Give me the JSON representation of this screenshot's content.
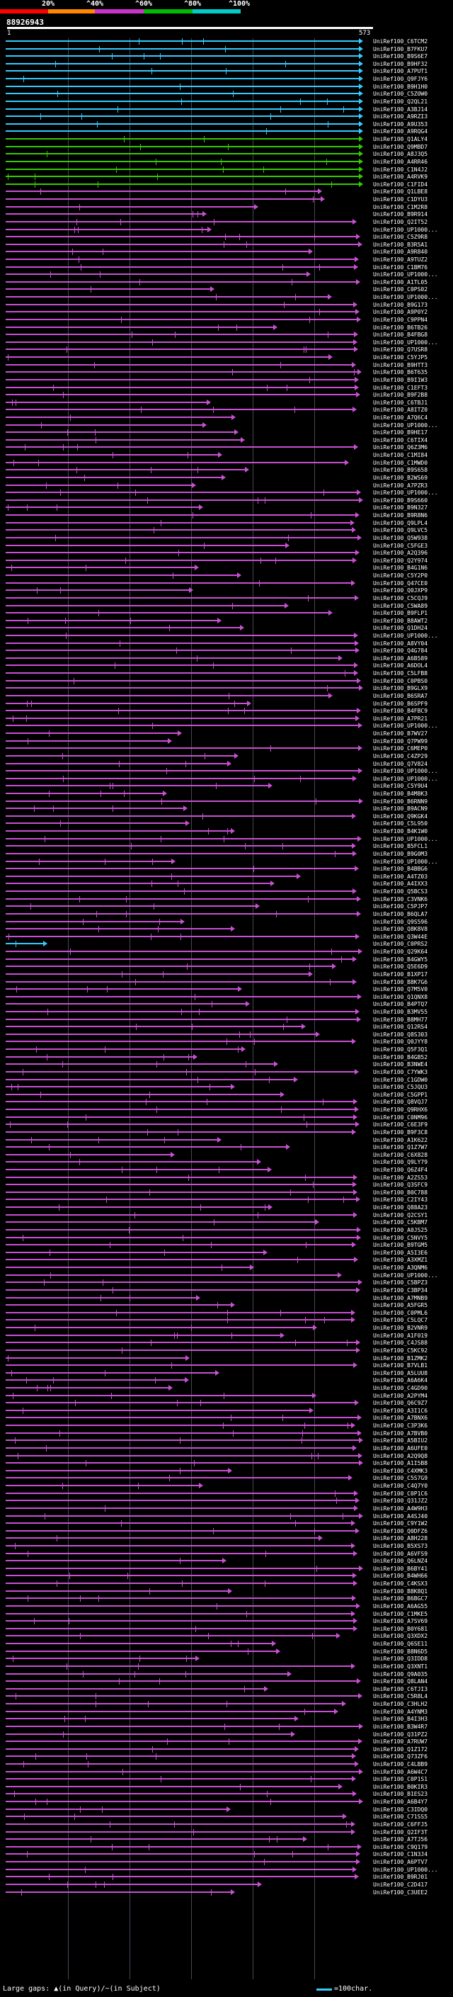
{
  "legend": {
    "ticks": [
      "20%",
      "^40%",
      "^60%",
      "^80%",
      "^100%"
    ],
    "bands": [
      {
        "color": "#ff0000"
      },
      {
        "color": "#ff8800"
      },
      {
        "color": "#cc33cc"
      },
      {
        "color": "#00bb00"
      },
      {
        "color": "#00cccc"
      }
    ]
  },
  "query": {
    "id": "88926943",
    "start": "1",
    "end": "573"
  },
  "colors": {
    "band_cyan": "#33ccff",
    "band_green": "#33cc00",
    "band_magenta": "#c850d2",
    "band_text": "#ffffff",
    "grid": "#444a55"
  },
  "hits": [
    {
      "label": "UniRef100_C6TCM2",
      "color": "cyan"
    },
    {
      "label": "UniRef100_B7FKU7",
      "color": "cyan"
    },
    {
      "label": "UniRef100_B9S6E7",
      "color": "cyan"
    },
    {
      "label": "UniRef100_B9HF32",
      "color": "cyan"
    },
    {
      "label": "UniRef100_A7PUT1",
      "color": "cyan"
    },
    {
      "label": "UniRef100_Q9FJY6",
      "color": "cyan"
    },
    {
      "label": "UniRef100_B9H1H0",
      "color": "cyan"
    },
    {
      "label": "UniRef100_C5Z0W0",
      "color": "cyan"
    },
    {
      "label": "UniRef100_Q2QL21",
      "color": "cyan"
    },
    {
      "label": "UniRef100_A3BJ14",
      "color": "cyan"
    },
    {
      "label": "UniRef100_A9RZI3",
      "color": "cyan"
    },
    {
      "label": "UniRef100_A9U353",
      "color": "cyan"
    },
    {
      "label": "UniRef100_A9RQG4",
      "color": "cyan"
    },
    {
      "label": "UniRef100_Q1ALY4",
      "color": "green"
    },
    {
      "label": "UniRef100_Q9MBD7",
      "color": "green"
    },
    {
      "label": "UniRef100_A8J3Q5",
      "color": "green"
    },
    {
      "label": "UniRef100_A4RR46",
      "color": "green"
    },
    {
      "label": "UniRef100_C1N4J2",
      "color": "green"
    },
    {
      "label": "UniRef100_A4RVK9",
      "color": "green"
    },
    {
      "label": "UniRef100_C1FID4",
      "color": "green"
    },
    {
      "label": "UniRef100_Q1LBE8",
      "color": "magenta"
    },
    {
      "label": "UniRef100_C1DYU3",
      "color": "magenta"
    },
    {
      "label": "UniRef100_C1M2R8",
      "color": "magenta"
    },
    {
      "label": "UniRef100_B9R914",
      "color": "magenta"
    },
    {
      "label": "UniRef100_Q2IT52",
      "color": "magenta"
    },
    {
      "label": "UniRef100_UP1000...",
      "color": "magenta"
    },
    {
      "label": "UniRef100_C5Z9R8",
      "color": "magenta"
    },
    {
      "label": "UniRef100_B3R5A1",
      "color": "magenta"
    },
    {
      "label": "UniRef100_A9R840",
      "color": "magenta"
    },
    {
      "label": "UniRef100_A9TUZ2",
      "color": "magenta"
    },
    {
      "label": "UniRef100_C1BM76",
      "color": "magenta"
    },
    {
      "label": "UniRef100_UP1000...",
      "color": "magenta"
    },
    {
      "label": "UniRef100_A1TL05",
      "color": "magenta"
    },
    {
      "label": "UniRef100_C0PS02",
      "color": "magenta"
    },
    {
      "label": "UniRef100_UP1000...",
      "color": "magenta"
    },
    {
      "label": "UniRef100_B9G173",
      "color": "magenta"
    },
    {
      "label": "UniRef100_A9P0Y2",
      "color": "magenta"
    },
    {
      "label": "UniRef100_C9PPN4",
      "color": "magenta"
    },
    {
      "label": "UniRef100_B6TB26",
      "color": "magenta"
    },
    {
      "label": "UniRef100_B4FBG8",
      "color": "magenta"
    },
    {
      "label": "UniRef100_UP1000...",
      "color": "magenta"
    },
    {
      "label": "UniRef100_Q7USR8",
      "color": "magenta"
    },
    {
      "label": "UniRef100_C5YJP5",
      "color": "magenta"
    },
    {
      "label": "UniRef100_B9HTT3",
      "color": "magenta"
    },
    {
      "label": "UniRef100_B6T635",
      "color": "magenta"
    },
    {
      "label": "UniRef100_B9I1W3",
      "color": "magenta"
    },
    {
      "label": "UniRef100_C1EFT3",
      "color": "magenta"
    },
    {
      "label": "UniRef100_B9F2B8",
      "color": "magenta"
    },
    {
      "label": "UniRef100_C6TBJ1",
      "color": "magenta"
    },
    {
      "label": "UniRef100_A8ITZ0",
      "color": "magenta"
    },
    {
      "label": "UniRef100_A7Q6C4",
      "color": "magenta"
    },
    {
      "label": "UniRef100_UP1000...",
      "color": "magenta"
    },
    {
      "label": "UniRef100_B9HE17",
      "color": "magenta"
    },
    {
      "label": "UniRef100_C6TIX4",
      "color": "magenta"
    },
    {
      "label": "UniRef100_Q6Z3M6",
      "color": "magenta"
    },
    {
      "label": "UniRef100_C1MI84",
      "color": "magenta"
    },
    {
      "label": "UniRef100_C1MWD0",
      "color": "magenta"
    },
    {
      "label": "UniRef100_B9S658",
      "color": "magenta"
    },
    {
      "label": "UniRef100_B2WS69",
      "color": "magenta"
    },
    {
      "label": "UniRef100_A7PZR3",
      "color": "magenta"
    },
    {
      "label": "UniRef100_UP1000...",
      "color": "magenta"
    },
    {
      "label": "UniRef100_B9S660",
      "color": "magenta"
    },
    {
      "label": "UniRef100_B9N327",
      "color": "magenta"
    },
    {
      "label": "UniRef100_B9R8N6",
      "color": "magenta"
    },
    {
      "label": "UniRef100_Q9LPL4",
      "color": "magenta"
    },
    {
      "label": "UniRef100_Q9LVC5",
      "color": "magenta"
    },
    {
      "label": "UniRef100_Q5W938",
      "color": "magenta"
    },
    {
      "label": "UniRef100_C5FGE3",
      "color": "magenta"
    },
    {
      "label": "UniRef100_A2Q396",
      "color": "magenta"
    },
    {
      "label": "UniRef100_Q2Y974",
      "color": "magenta"
    },
    {
      "label": "UniRef100_B4G1N6",
      "color": "magenta"
    },
    {
      "label": "UniRef100_C5Y2P0",
      "color": "magenta"
    },
    {
      "label": "UniRef100_Q47CE0",
      "color": "magenta"
    },
    {
      "label": "UniRef100_Q0JXP9",
      "color": "magenta"
    },
    {
      "label": "UniRef100_C5CQJ9",
      "color": "magenta"
    },
    {
      "label": "UniRef100_C5WA89",
      "color": "magenta"
    },
    {
      "label": "UniRef100_B9FLP1",
      "color": "magenta"
    },
    {
      "label": "UniRef100_B8AWT2",
      "color": "magenta"
    },
    {
      "label": "UniRef100_Q1DH24",
      "color": "magenta"
    },
    {
      "label": "UniRef100_UP1000...",
      "color": "magenta"
    },
    {
      "label": "UniRef100_A8VY04",
      "color": "magenta"
    },
    {
      "label": "UniRef100_Q4G784",
      "color": "magenta"
    },
    {
      "label": "UniRef100_A6B589",
      "color": "magenta"
    },
    {
      "label": "UniRef100_A6DOL4",
      "color": "magenta"
    },
    {
      "label": "UniRef100_C5LFB8",
      "color": "magenta"
    },
    {
      "label": "UniRef100_C0PBS0",
      "color": "magenta"
    },
    {
      "label": "UniRef100_B9GLX9",
      "color": "magenta"
    },
    {
      "label": "UniRef100_B6SRA7",
      "color": "magenta"
    },
    {
      "label": "UniRef100_B6SPF9",
      "color": "magenta"
    },
    {
      "label": "UniRef100_B4FBC9",
      "color": "magenta"
    },
    {
      "label": "UniRef100_A7PR21",
      "color": "magenta"
    },
    {
      "label": "UniRef100_UP1000...",
      "color": "magenta"
    },
    {
      "label": "UniRef100_B7WV27",
      "color": "magenta"
    },
    {
      "label": "UniRef100_Q7PW99",
      "color": "magenta"
    },
    {
      "label": "UniRef100_C6MEP0",
      "color": "magenta"
    },
    {
      "label": "UniRef100_C4ZP29",
      "color": "magenta"
    },
    {
      "label": "UniRef100_Q7V824",
      "color": "magenta"
    },
    {
      "label": "UniRef100_UP1000...",
      "color": "magenta"
    },
    {
      "label": "UniRef100_UP1000...",
      "color": "magenta"
    },
    {
      "label": "UniRef100_C5Y9U4",
      "color": "magenta"
    },
    {
      "label": "UniRef100_B4M8K3",
      "color": "magenta"
    },
    {
      "label": "UniRef100_B6RNN9",
      "color": "magenta"
    },
    {
      "label": "UniRef100_B9ACN9",
      "color": "magenta"
    },
    {
      "label": "UniRef100_Q9KGK4",
      "color": "magenta"
    },
    {
      "label": "UniRef100_C5L950",
      "color": "magenta"
    },
    {
      "label": "UniRef100_B4K1W0",
      "color": "magenta"
    },
    {
      "label": "UniRef100_UP1000...",
      "color": "magenta"
    },
    {
      "label": "UniRef100_B5FCL1",
      "color": "magenta"
    },
    {
      "label": "UniRef100_B9G0M3",
      "color": "magenta"
    },
    {
      "label": "UniRef100_UP1000...",
      "color": "magenta"
    },
    {
      "label": "UniRef100_B4BBG6",
      "color": "magenta"
    },
    {
      "label": "UniRef100_A4TZ03",
      "color": "magenta"
    },
    {
      "label": "UniRef100_A4IXX3",
      "color": "magenta"
    },
    {
      "label": "UniRef100_Q5BCS3",
      "color": "magenta"
    },
    {
      "label": "UniRef100_C3VNK6",
      "color": "magenta"
    },
    {
      "label": "UniRef100_C5PJP7",
      "color": "magenta"
    },
    {
      "label": "UniRef100_B6QLA7",
      "color": "magenta"
    },
    {
      "label": "UniRef100_Q9S596",
      "color": "magenta"
    },
    {
      "label": "UniRef100_Q8K8V8",
      "color": "magenta"
    },
    {
      "label": "UniRef100_Q3W44E",
      "color": "magenta"
    },
    {
      "label": "UniRef100_C0PRS2",
      "color": "cyan"
    },
    {
      "label": "UniRef100_Q29K64",
      "color": "magenta"
    },
    {
      "label": "UniRef100_B4GWY5",
      "color": "magenta"
    },
    {
      "label": "UniRef100_Q5E6D9",
      "color": "magenta"
    },
    {
      "label": "UniRef100_B1XP17",
      "color": "magenta"
    },
    {
      "label": "UniRef100_B8K7G6",
      "color": "magenta"
    },
    {
      "label": "UniRef100_Q7M5V0",
      "color": "magenta"
    },
    {
      "label": "UniRef100_Q1QNX8",
      "color": "magenta"
    },
    {
      "label": "UniRef100_B4PTQ7",
      "color": "magenta"
    },
    {
      "label": "UniRef100_B3MV55",
      "color": "magenta"
    },
    {
      "label": "UniRef100_B8MH77",
      "color": "magenta"
    },
    {
      "label": "UniRef100_Q12RS4",
      "color": "magenta"
    },
    {
      "label": "UniRef100_Q8S303",
      "color": "magenta"
    },
    {
      "label": "UniRef100_Q0JYY8",
      "color": "magenta"
    },
    {
      "label": "UniRef100_Q5F3Q1",
      "color": "magenta"
    },
    {
      "label": "UniRef100_B4GB52",
      "color": "magenta"
    },
    {
      "label": "UniRef100_B3NWE4",
      "color": "magenta"
    },
    {
      "label": "UniRef100_C7YWK3",
      "color": "magenta"
    },
    {
      "label": "UniRef100_C1GDW0",
      "color": "magenta"
    },
    {
      "label": "UniRef100_C5JQU3",
      "color": "magenta"
    },
    {
      "label": "UniRef100_C5GPP1",
      "color": "magenta"
    },
    {
      "label": "UniRef100_Q8VQJ7",
      "color": "magenta"
    },
    {
      "label": "UniRef100_Q9RHX6",
      "color": "magenta"
    },
    {
      "label": "UniRef100_C0NM96",
      "color": "magenta"
    },
    {
      "label": "UniRef100_C6E3F9",
      "color": "magenta"
    },
    {
      "label": "UniRef100_B9F3C8",
      "color": "magenta"
    },
    {
      "label": "UniRef100_A1K622",
      "color": "magenta"
    },
    {
      "label": "UniRef100_Q1Z7W7",
      "color": "magenta"
    },
    {
      "label": "UniRef100_C6X828",
      "color": "magenta"
    },
    {
      "label": "UniRef100_Q9LY79",
      "color": "magenta"
    },
    {
      "label": "UniRef100_Q6Z4F4",
      "color": "magenta"
    },
    {
      "label": "UniRef100_A2ZS53",
      "color": "magenta"
    },
    {
      "label": "UniRef100_Q3SFC9",
      "color": "magenta"
    },
    {
      "label": "UniRef100_B0C788",
      "color": "magenta"
    },
    {
      "label": "UniRef100_C2IY43",
      "color": "magenta"
    },
    {
      "label": "UniRef100_Q88A23",
      "color": "magenta"
    },
    {
      "label": "UniRef100_Q2CSY1",
      "color": "magenta"
    },
    {
      "label": "UniRef100_C5KBM7",
      "color": "magenta"
    },
    {
      "label": "UniRef100_A0JS25",
      "color": "magenta"
    },
    {
      "label": "UniRef100_C5NVY5",
      "color": "magenta"
    },
    {
      "label": "UniRef100_B9TGM5",
      "color": "magenta"
    },
    {
      "label": "UniRef100_A5I3E6",
      "color": "magenta"
    },
    {
      "label": "UniRef100_A3XMZ1",
      "color": "magenta"
    },
    {
      "label": "UniRef100_A3QNM6",
      "color": "magenta"
    },
    {
      "label": "UniRef100_UP1000...",
      "color": "magenta"
    },
    {
      "label": "UniRef100_C5BPZ3",
      "color": "magenta"
    },
    {
      "label": "UniRef100_C3BP34",
      "color": "magenta"
    },
    {
      "label": "UniRef100_A7MNB9",
      "color": "magenta"
    },
    {
      "label": "UniRef100_A5FGR5",
      "color": "magenta"
    },
    {
      "label": "UniRef100_C0PML6",
      "color": "magenta"
    },
    {
      "label": "UniRef100_C5LQC7",
      "color": "magenta"
    },
    {
      "label": "UniRef100_B2VNR9",
      "color": "magenta"
    },
    {
      "label": "UniRef100_A1F019",
      "color": "magenta"
    },
    {
      "label": "UniRef100_C4JS88",
      "color": "magenta"
    },
    {
      "label": "UniRef100_C5KC92",
      "color": "magenta"
    },
    {
      "label": "UniRef100_B1ZMK2",
      "color": "magenta"
    },
    {
      "label": "UniRef100_B7VLB1",
      "color": "magenta"
    },
    {
      "label": "UniRef100_A5LUU8",
      "color": "magenta"
    },
    {
      "label": "UniRef100_A6A6K4",
      "color": "magenta"
    },
    {
      "label": "UniRef100_C4GD90",
      "color": "magenta"
    },
    {
      "label": "UniRef100_A2PYM4",
      "color": "magenta"
    },
    {
      "label": "UniRef100_Q6C9Z7",
      "color": "magenta"
    },
    {
      "label": "UniRef100_A3I1C6",
      "color": "magenta"
    },
    {
      "label": "UniRef100_A7BNX6",
      "color": "magenta"
    },
    {
      "label": "UniRef100_C3P3K6",
      "color": "magenta"
    },
    {
      "label": "UniRef100_A7BVB0",
      "color": "magenta"
    },
    {
      "label": "UniRef100_A5BIU2",
      "color": "magenta"
    },
    {
      "label": "UniRef100_A6UFE0",
      "color": "magenta"
    },
    {
      "label": "UniRef100_A2Q9Q8",
      "color": "magenta"
    },
    {
      "label": "UniRef100_A1I5B8",
      "color": "magenta"
    },
    {
      "label": "UniRef100_C4XMK3",
      "color": "magenta"
    },
    {
      "label": "UniRef100_C5S7G9",
      "color": "magenta"
    },
    {
      "label": "UniRef100_C4Q7Y0",
      "color": "magenta"
    },
    {
      "label": "UniRef100_C0P1C6",
      "color": "magenta"
    },
    {
      "label": "UniRef100_Q31JZ2",
      "color": "magenta"
    },
    {
      "label": "UniRef100_A4W9H3",
      "color": "magenta"
    },
    {
      "label": "UniRef100_A4SJ40",
      "color": "magenta"
    },
    {
      "label": "UniRef100_C9Y1W2",
      "color": "magenta"
    },
    {
      "label": "UniRef100_Q0DFZ6",
      "color": "magenta"
    },
    {
      "label": "UniRef100_A8H228",
      "color": "magenta"
    },
    {
      "label": "UniRef100_B5XS73",
      "color": "magenta"
    },
    {
      "label": "UniRef100_A6VFS9",
      "color": "magenta"
    },
    {
      "label": "UniRef100_Q6LNZ4",
      "color": "magenta"
    },
    {
      "label": "UniRef100_B6BY41",
      "color": "magenta"
    },
    {
      "label": "UniRef100_B4WH66",
      "color": "magenta"
    },
    {
      "label": "UniRef100_C4KSX3",
      "color": "magenta"
    },
    {
      "label": "UniRef100_B8K8Q1",
      "color": "magenta"
    },
    {
      "label": "UniRef100_B6BGC7",
      "color": "magenta"
    },
    {
      "label": "UniRef100_A6AG55",
      "color": "magenta"
    },
    {
      "label": "UniRef100_C1MKE5",
      "color": "magenta"
    },
    {
      "label": "UniRef100_A7SV69",
      "color": "magenta"
    },
    {
      "label": "UniRef100_B0Y681",
      "color": "magenta"
    },
    {
      "label": "UniRef100_Q3XDX2",
      "color": "magenta"
    },
    {
      "label": "UniRef100_Q6SE11",
      "color": "magenta"
    },
    {
      "label": "UniRef100_B8N6D5",
      "color": "magenta"
    },
    {
      "label": "UniRef100_Q3IDD8",
      "color": "magenta"
    },
    {
      "label": "UniRef100_Q3XNT1",
      "color": "magenta"
    },
    {
      "label": "UniRef100_Q9A035",
      "color": "magenta"
    },
    {
      "label": "UniRef100_Q8LAN4",
      "color": "magenta"
    },
    {
      "label": "UniRef100_C6TJI3",
      "color": "magenta"
    },
    {
      "label": "UniRef100_C5R8L4",
      "color": "magenta"
    },
    {
      "label": "UniRef100_C3HLH2",
      "color": "magenta"
    },
    {
      "label": "UniRef100_A4YNM3",
      "color": "magenta"
    },
    {
      "label": "UniRef100_B4I3H3",
      "color": "magenta"
    },
    {
      "label": "UniRef100_B3W4R7",
      "color": "magenta"
    },
    {
      "label": "UniRef100_Q31PZ2",
      "color": "magenta"
    },
    {
      "label": "UniRef100_A7RUW7",
      "color": "magenta"
    },
    {
      "label": "UniRef100_Q1Z172",
      "color": "magenta"
    },
    {
      "label": "UniRef100_Q73ZF6",
      "color": "magenta"
    },
    {
      "label": "UniRef100_C4LBB9",
      "color": "magenta"
    },
    {
      "label": "UniRef100_A6W4C7",
      "color": "magenta"
    },
    {
      "label": "UniRef100_C0P1S1",
      "color": "magenta"
    },
    {
      "label": "UniRef100_B0KIR3",
      "color": "magenta"
    },
    {
      "label": "UniRef100_B1ES23",
      "color": "magenta"
    },
    {
      "label": "UniRef100_A6B4Y7",
      "color": "magenta"
    },
    {
      "label": "UniRef100_C3IDQ0",
      "color": "magenta"
    },
    {
      "label": "UniRef100_C71SS5",
      "color": "magenta"
    },
    {
      "label": "UniRef100_C6FFJ5",
      "color": "magenta"
    },
    {
      "label": "UniRef100_Q2IF3T",
      "color": "magenta"
    },
    {
      "label": "UniRef100_A7TJ56",
      "color": "magenta"
    },
    {
      "label": "UniRef100_C9Q179",
      "color": "magenta"
    },
    {
      "label": "UniRef100_C1N3J4",
      "color": "magenta"
    },
    {
      "label": "UniRef100_A6PTV7",
      "color": "magenta"
    },
    {
      "label": "UniRef100_UP1000...",
      "color": "magenta"
    },
    {
      "label": "UniRef100_B9RJ01",
      "color": "magenta"
    },
    {
      "label": "UniRef100_C2D417",
      "color": "magenta"
    },
    {
      "label": "UniRef100_C3UEE2",
      "color": "magenta"
    }
  ],
  "footer": {
    "left": "Large gaps: ▲(in Query)/~(in Subject)",
    "right": "=100char."
  }
}
